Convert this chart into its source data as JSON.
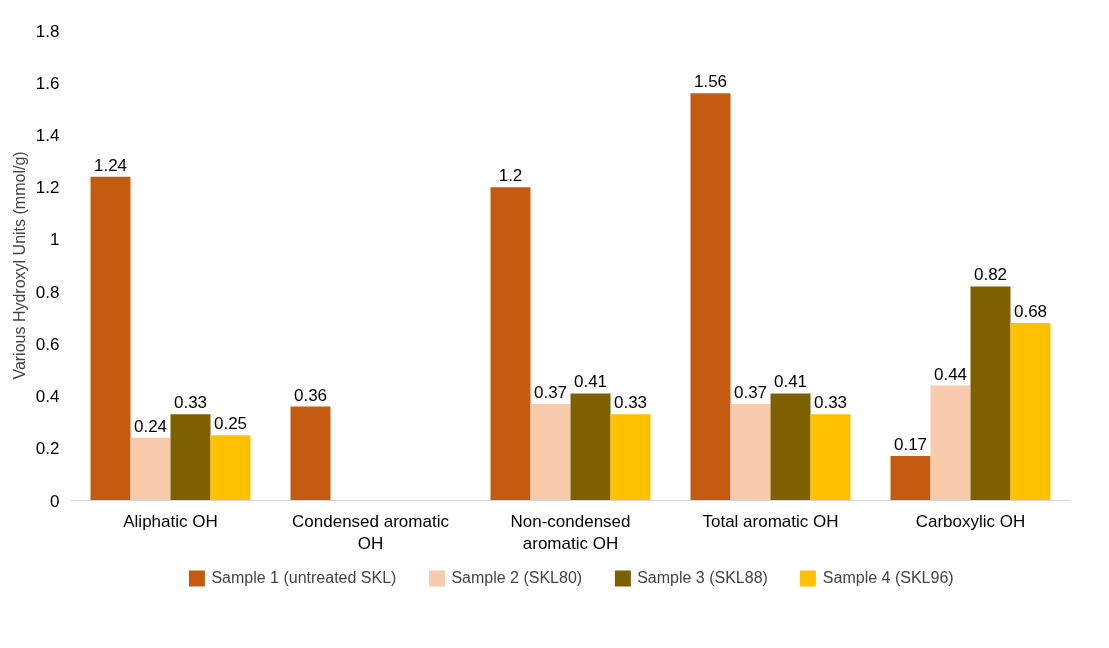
{
  "chart_data": {
    "type": "bar",
    "ylabel": "Various Hydroxyl Units (mmol/g)",
    "categories": [
      "Aliphatic OH",
      "Condensed aromatic OH",
      "Non-condensed aromatic OH",
      "Total aromatic OH",
      "Carboxylic OH"
    ],
    "series": [
      {
        "name": "Sample 1 (untreated SKL)",
        "color": "#c55a11",
        "values": [
          1.24,
          0.36,
          1.2,
          1.56,
          0.17
        ]
      },
      {
        "name": "Sample 2 (SKL80)",
        "color": "#f8cbad",
        "values": [
          0.24,
          null,
          0.37,
          0.37,
          0.44
        ]
      },
      {
        "name": "Sample 3 (SKL88)",
        "color": "#7f6000",
        "values": [
          0.33,
          null,
          0.41,
          0.41,
          0.82
        ]
      },
      {
        "name": "Sample 4 (SKL96)",
        "color": "#ffc000",
        "values": [
          0.25,
          null,
          0.33,
          0.33,
          0.68
        ]
      }
    ],
    "ylim": [
      0,
      1.8
    ],
    "yticks": [
      0,
      0.2,
      0.4,
      0.6,
      0.8,
      1,
      1.2,
      1.4,
      1.6,
      1.8
    ],
    "data_labels": true,
    "grid": false,
    "legend": "bottom"
  }
}
